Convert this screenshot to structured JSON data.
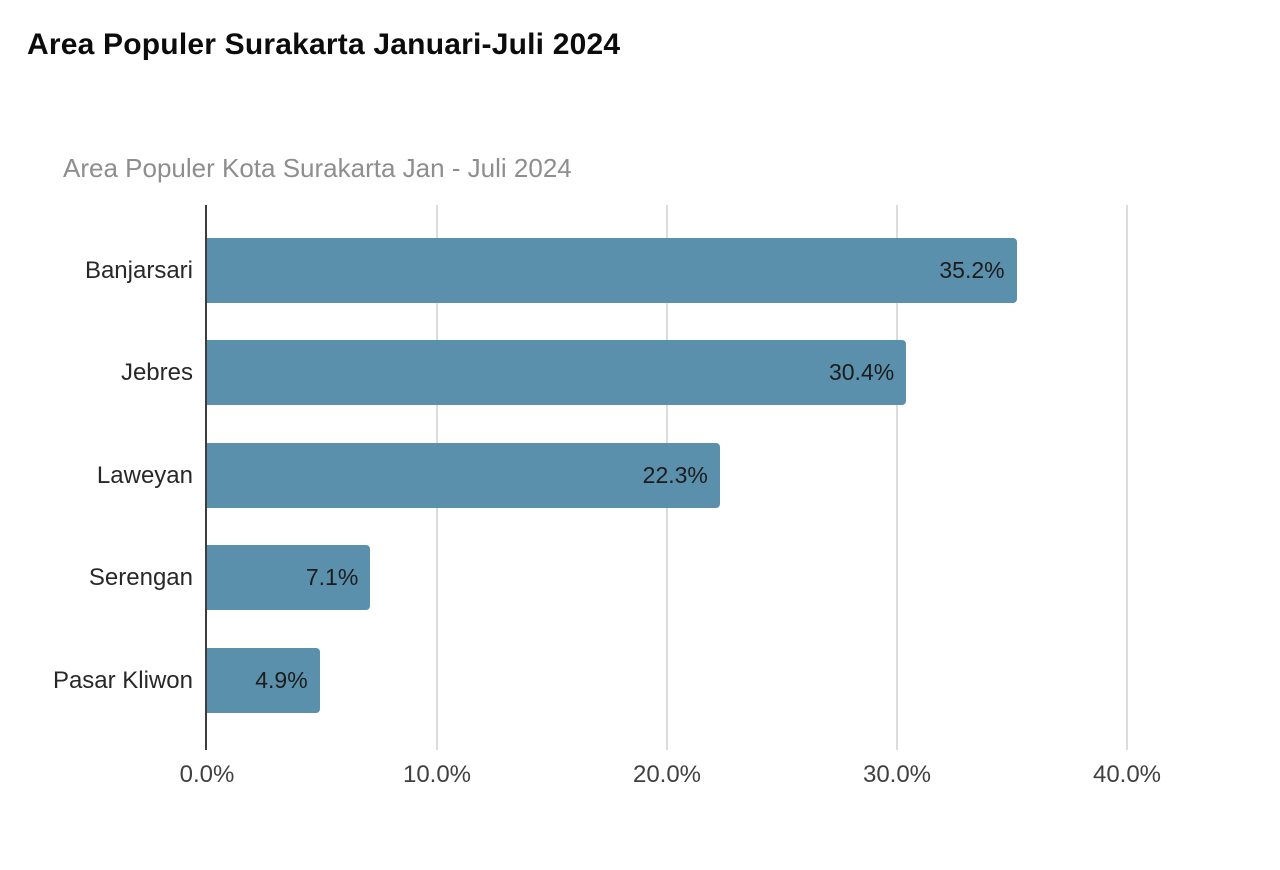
{
  "page": {
    "title": "Area Populer Surakarta Januari-Juli 2024"
  },
  "chart_data": {
    "type": "bar",
    "orientation": "horizontal",
    "title": "Area Populer Kota Surakarta Jan - Juli 2024",
    "categories": [
      "Banjarsari",
      "Jebres",
      "Laweyan",
      "Serengan",
      "Pasar Kliwon"
    ],
    "values": [
      35.2,
      30.4,
      22.3,
      7.1,
      4.9
    ],
    "value_labels": [
      "35.2%",
      "30.4%",
      "22.3%",
      "7.1%",
      "4.9%"
    ],
    "x_ticks": [
      0,
      10,
      20,
      30,
      40
    ],
    "x_tick_labels": [
      "0.0%",
      "10.0%",
      "20.0%",
      "30.0%",
      "40.0%"
    ],
    "xlim": [
      0,
      45
    ],
    "grid": "vertical-only",
    "legend": "none",
    "colors": {
      "bar": "#5a90ac",
      "gridline": "#dcdcdc",
      "axis_line": "#3d3d3d",
      "category_label": "#282828",
      "value_label": "#1c1c1c",
      "tick_label": "#404040",
      "chart_title": "#8e8e8e",
      "page_title": "#0c0c0c",
      "background": "#ffffff"
    }
  }
}
